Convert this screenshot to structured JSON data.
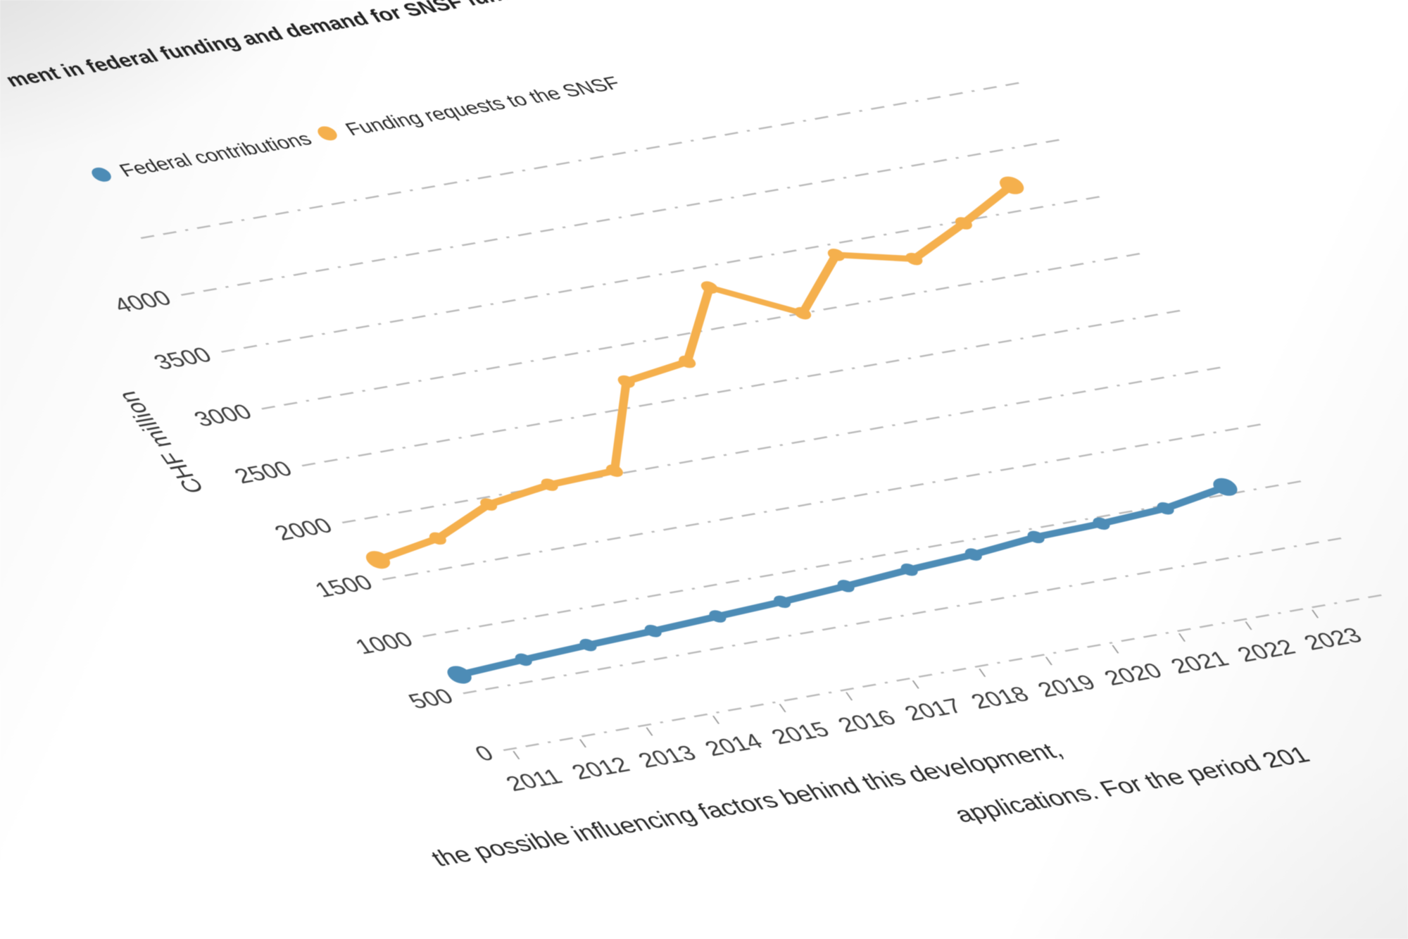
{
  "page": {
    "title_fragment": "ment in federal funding and demand for SNSF funding",
    "body_fragment_1": "the possible influencing factors behind this development,",
    "body_fragment_2": "applications. For the period 201"
  },
  "chart_data": {
    "type": "line",
    "x": [
      2011,
      2012,
      2013,
      2014,
      2015,
      2016,
      2017,
      2018,
      2019,
      2020,
      2021,
      2022,
      2023
    ],
    "series": [
      {
        "name": "Federal contributions",
        "color": "#4d8cb6",
        "values": [
          650,
          680,
          705,
          725,
          750,
          775,
          810,
          850,
          880,
          930,
          945,
          975,
          1060
        ]
      },
      {
        "name": "Funding requests to the SNSF",
        "color": "#f5b04d",
        "values": [
          1660,
          1745,
          1940,
          2010,
          2030,
          2710,
          2780,
          3330,
          3000,
          3410,
          3270,
          3480,
          3710
        ]
      }
    ],
    "title": "ment in federal funding and demand for SNSF funding",
    "xlabel": "",
    "ylabel": "CHF million",
    "ylim": [
      0,
      4500
    ],
    "yticks": [
      0,
      500,
      1000,
      1500,
      2000,
      2500,
      3000,
      3500,
      4000
    ],
    "grid": "dashed",
    "legend_position": "top-left"
  },
  "colors": {
    "grid": "#b8b8b8",
    "tick": "#9a9a9a",
    "axis_text": "#3f3f3f",
    "title_text": "#222222",
    "body_text": "#2a2a2a"
  }
}
